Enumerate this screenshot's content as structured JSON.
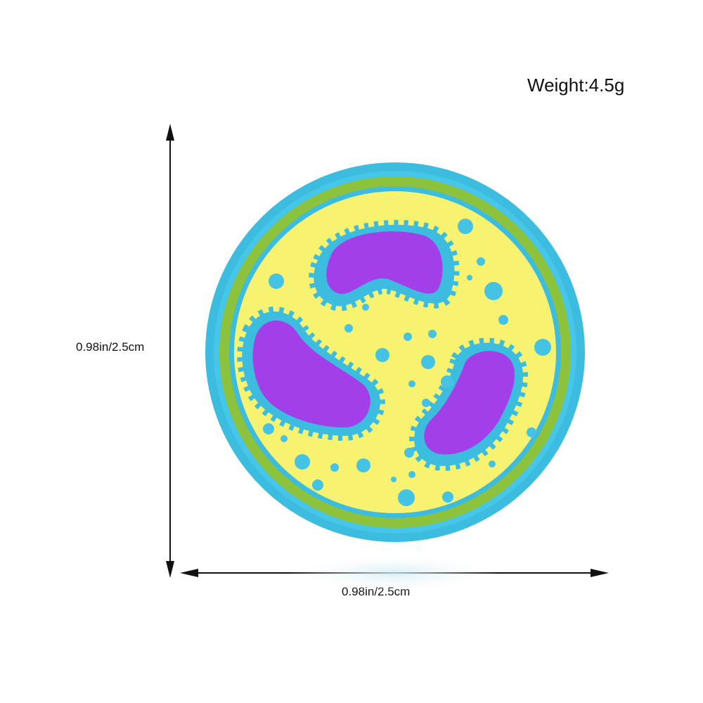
{
  "product": {
    "weight_label": "Weight:4.5g",
    "height_label": "0.98in/2.5cm",
    "width_label": "0.98in/2.5cm"
  },
  "colors": {
    "outer_ring": "#3cbde0",
    "green_ring": "#8cc23c",
    "cytoplasm": "#f7f370",
    "nucleus": "#a23fe8",
    "granule": "#44c3e5",
    "arrow": "#111111"
  },
  "icons": [
    "arrow-double-vertical",
    "arrow-double-horizontal",
    "enamel-pin-white-blood-cell"
  ]
}
